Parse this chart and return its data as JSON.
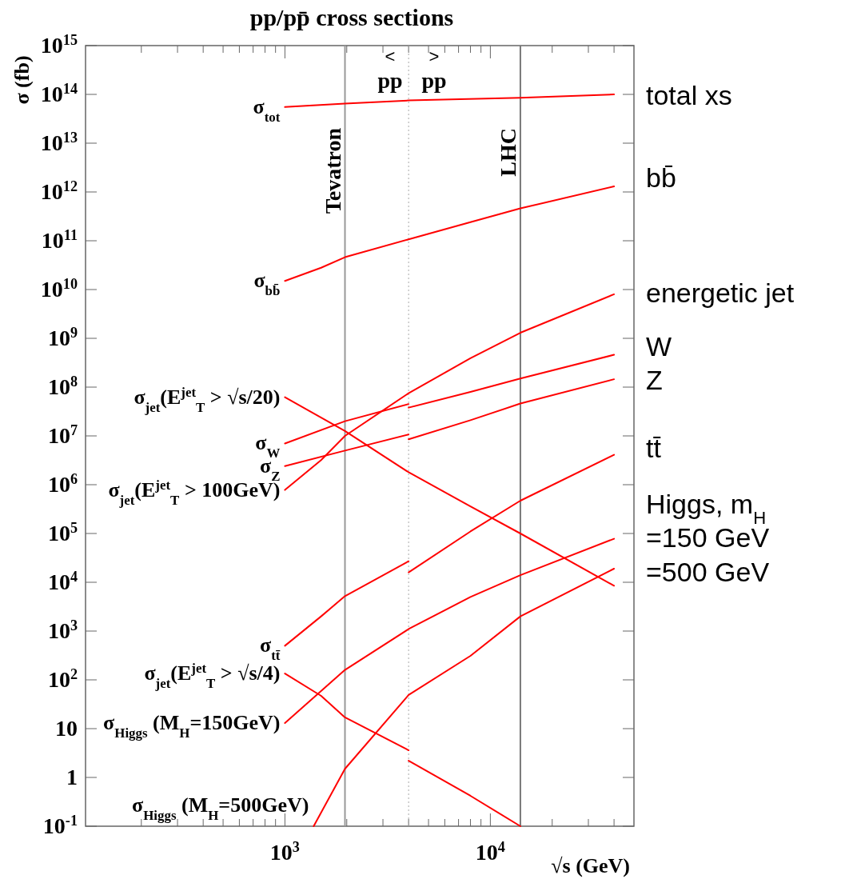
{
  "chart_data": {
    "type": "line",
    "title": "pp/pp̄ cross sections",
    "xlabel": "√s (GeV)",
    "ylabel": "σ (fb)",
    "log": "xy",
    "xlim": [
      107,
      50000
    ],
    "ylim": [
      0.1,
      1000000000000000.0
    ],
    "xticks": [
      {
        "value": 200,
        "label": null
      },
      {
        "value": 300,
        "label": null
      },
      {
        "value": 400,
        "label": null
      },
      {
        "value": 500,
        "label": null
      },
      {
        "value": 600,
        "label": null
      },
      {
        "value": 700,
        "label": null
      },
      {
        "value": 800,
        "label": null
      },
      {
        "value": 900,
        "label": null
      },
      {
        "value": 1000,
        "label": "10$^{3}$"
      },
      {
        "value": 2000,
        "label": null
      },
      {
        "value": 3000,
        "label": null
      },
      {
        "value": 4000,
        "label": null
      },
      {
        "value": 5000,
        "label": null
      },
      {
        "value": 6000,
        "label": null
      },
      {
        "value": 7000,
        "label": null
      },
      {
        "value": 8000,
        "label": null
      },
      {
        "value": 9000,
        "label": null
      },
      {
        "value": 10000,
        "label": "10$^{4}$"
      },
      {
        "value": 20000,
        "label": null
      },
      {
        "value": 30000,
        "label": null
      },
      {
        "value": 40000,
        "label": null
      }
    ],
    "yticks": [
      {
        "value": 0.1,
        "label": "10$^{-1}$"
      },
      1,
      10,
      {
        "value": 100,
        "label": "10$^{2}$"
      },
      {
        "value": 1000,
        "label": "10$^{3}$"
      },
      {
        "value": 10000,
        "label": "10$^{4}$"
      },
      {
        "value": 100000,
        "label": "10$^{5}$"
      },
      {
        "value": 1000000,
        "label": "10$^{6}$"
      },
      {
        "value": 10000000,
        "label": "10$^{7}$"
      },
      {
        "value": 100000000,
        "label": "10$^{8}$"
      },
      {
        "value": 1000000000,
        "label": "10$^{9}$"
      },
      {
        "value": 10000000000,
        "label": "10$^{10}$"
      },
      {
        "value": 100000000000,
        "label": "10$^{11}$"
      },
      {
        "value": 1000000000000,
        "label": "10$^{12}$"
      },
      {
        "value": 10000000000000,
        "label": "10$^{13}$"
      },
      {
        "value": 100000000000000,
        "label": "10$^{14}$"
      },
      {
        "value": 1000000000000000,
        "label": "10$^{15}$"
      }
    ],
    "series": [
      {
        "name": "σ$_{tot}$",
        "color": "#ff0000",
        "x": [
          1000,
          1960,
          4000,
          14000,
          40000
        ],
        "values": [
          55000000000000.0,
          65000000000000.0,
          75000000000000.0,
          85000000000000.0,
          100000000000000.0
        ]
      },
      {
        "name": "σ$_{bb̄}$",
        "color": "#ff0000",
        "x": [
          1000,
          1500,
          1960,
          4000,
          8000,
          14000,
          40000
        ],
        "values": [
          15000000000.0,
          28000000000.0,
          46000000000.0,
          107000000000.0,
          240000000000.0,
          460000000000.0,
          1300000000000.0
        ]
      },
      {
        "name": "σ$_{jet}$(E$^{jet}$$_{T}$ > √s/20)",
        "color": "#ff0000",
        "x": [
          1000,
          1960,
          4000,
          8000,
          14000,
          40000
        ],
        "values": [
          62000000.0,
          12600000.0,
          1800000.0,
          360000.0,
          100000.0,
          8500.0
        ]
      },
      {
        "name": "σ$_{W}$",
        "color": "#ff0000",
        "x": [
          1000,
          1960,
          4000
        ],
        "values": [
          7000000.0,
          20000000.0,
          45000000.0
        ]
      },
      {
        "color": "#ff0000",
        "x": [
          4000,
          8000,
          14000,
          40000
        ],
        "values": [
          38000000.0,
          80000000.0,
          150000000.0,
          460000000.0
        ]
      },
      {
        "name": "σ$_{Z}$",
        "color": "#ff0000",
        "x": [
          1000,
          1960,
          4000
        ],
        "values": [
          2400000.0,
          5000000.0,
          10700000.0
        ]
      },
      {
        "color": "#ff0000",
        "x": [
          4000,
          8000,
          14000,
          40000
        ],
        "values": [
          8500000.0,
          21000000.0,
          46000000.0,
          145000000.0
        ]
      },
      {
        "name": "σ$_{jet}$(E$^{jet}$$_{T}$ > 100GeV)",
        "color": "#ff0000",
        "x": [
          1000,
          1500,
          1960,
          4000,
          8000,
          14000,
          40000
        ],
        "values": [
          780000.0,
          3200000.0,
          10000000.0,
          75000000.0,
          390000000.0,
          1300000000.0,
          8000000000.0
        ]
      },
      {
        "name": "σ$_{tt̄}$",
        "color": "#ff0000",
        "x": [
          1000,
          1500,
          1960,
          4000
        ],
        "values": [
          500,
          2000,
          5200,
          27000
        ]
      },
      {
        "color": "#ff0000",
        "x": [
          4000,
          8000,
          14000,
          40000
        ],
        "values": [
          16000,
          110000,
          470000,
          4100000
        ]
      },
      {
        "name": "σ$_{jet}$(E$^{jet}$$_{T}$ > √s/4)",
        "color": "#ff0000",
        "x": [
          1000,
          1500,
          1960,
          4000
        ],
        "values": [
          135,
          47,
          17,
          3.6
        ]
      },
      {
        "color": "#ff0000",
        "x": [
          4000,
          8000,
          14000
        ],
        "values": [
          2.2,
          0.42,
          0.1
        ]
      },
      {
        "name": "σ$_{Higgs}$ (M$_{H}$=150GeV)",
        "color": "#ff0000",
        "x": [
          1000,
          1960,
          4000,
          8000,
          14000,
          40000
        ],
        "values": [
          13,
          160,
          1100,
          5000,
          14000,
          78000
        ]
      },
      {
        "name": "σ$_{Higgs}$ (M$_{H}$=500GeV)",
        "color": "#ff0000",
        "x": [
          1380,
          1960,
          4000,
          8000,
          14000,
          40000
        ],
        "values": [
          0.1,
          1.5,
          49,
          310,
          2000,
          19000
        ]
      }
    ],
    "ref_lines": [
      {
        "axis": "x",
        "value": 1960,
        "label": "Tevatron",
        "color": "#999999",
        "line_style": "solid"
      },
      {
        "axis": "x",
        "value": 4000,
        "color": "#aaaaaa",
        "line_style": "dotted"
      },
      {
        "axis": "x",
        "value": 14000,
        "label": "LHC",
        "color": "#777777",
        "line_style": "solid"
      }
    ],
    "annotations": [
      "<",
      "pp",
      ">",
      "pp",
      "total xs",
      "bb̄",
      "energetic jet",
      "W",
      "Z",
      "tt̄",
      "Higgs, m$_{H}$",
      "=150 GeV",
      "=500 GeV"
    ]
  }
}
